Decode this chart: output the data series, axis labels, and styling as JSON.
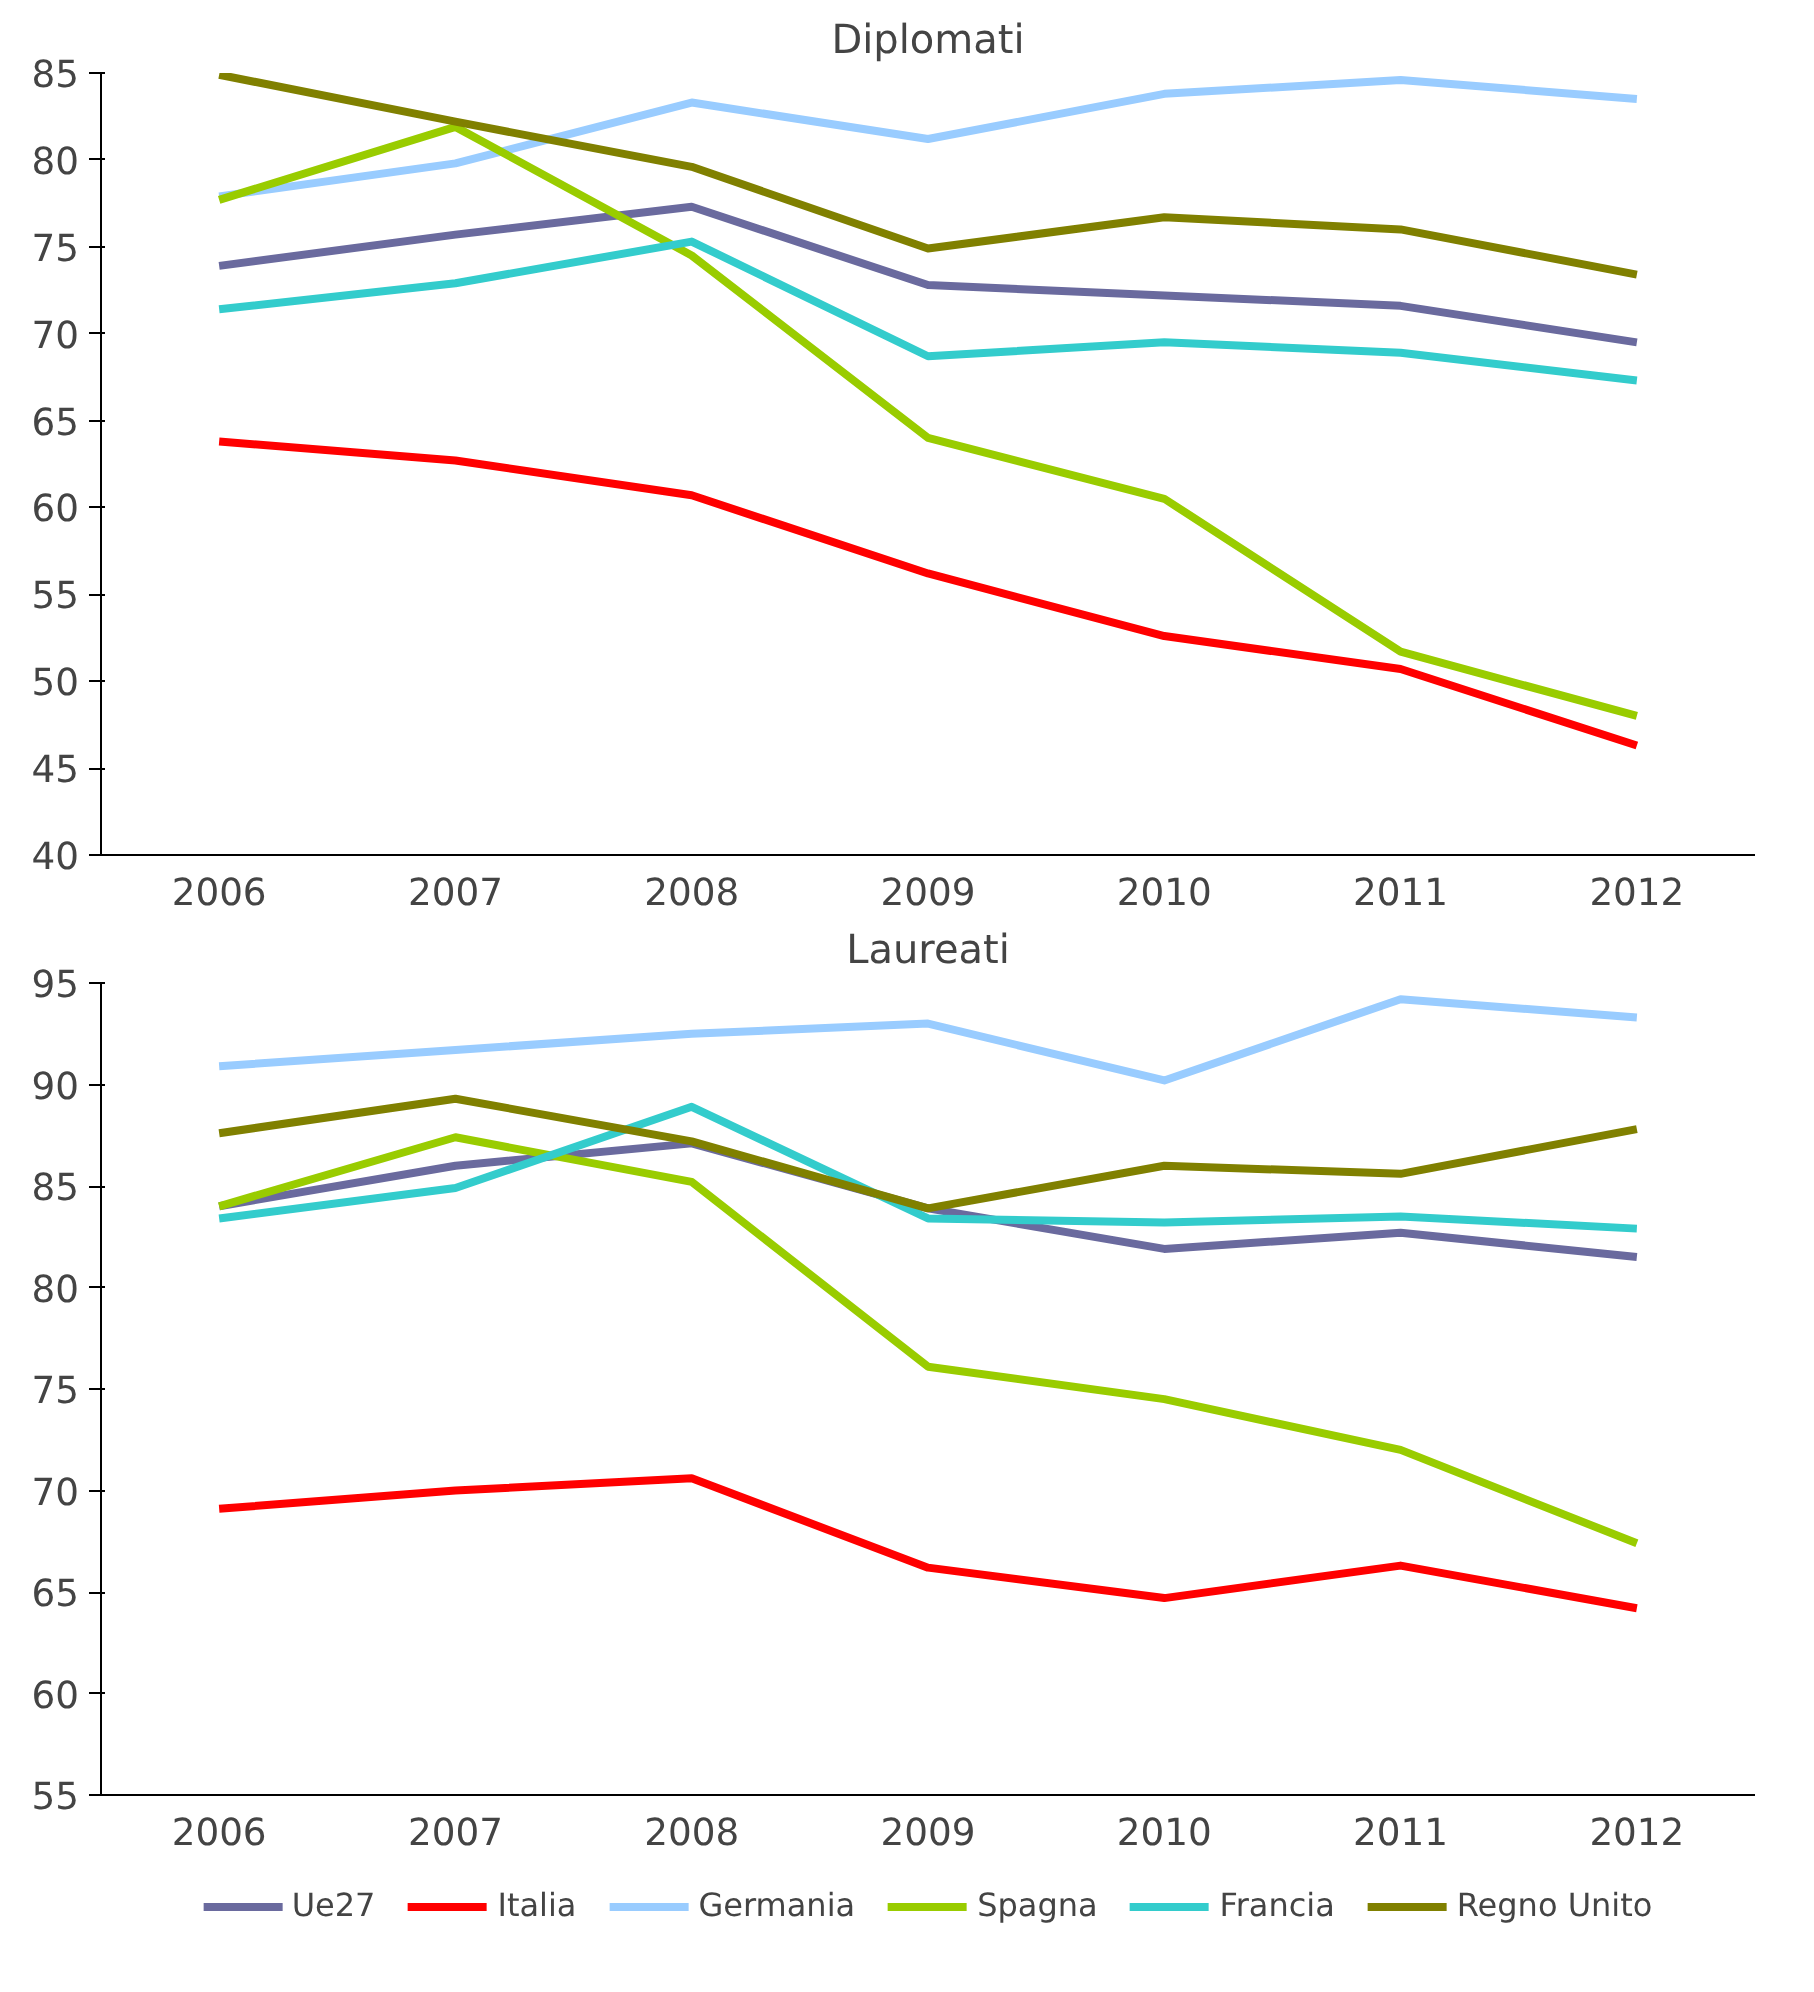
{
  "chart_data": [
    {
      "type": "line",
      "title": "Diplomati",
      "categories": [
        "2006",
        "2007",
        "2008",
        "2009",
        "2010",
        "2011",
        "2012"
      ],
      "ylim": [
        40,
        85
      ],
      "yticks": [
        40,
        45,
        50,
        55,
        60,
        65,
        70,
        75,
        80,
        85
      ],
      "grid": false,
      "legend": "bottom",
      "marker": "none",
      "line_style": "solid",
      "series": [
        {
          "name": "Ue27",
          "color": "#6a6a9e",
          "values": [
            73.9,
            75.7,
            77.3,
            72.8,
            72.2,
            71.6,
            69.5
          ]
        },
        {
          "name": "Italia",
          "color": "#ff0000",
          "values": [
            63.8,
            62.7,
            60.7,
            56.2,
            52.6,
            50.7,
            46.3
          ]
        },
        {
          "name": "Germania",
          "color": "#99ccff",
          "values": [
            77.9,
            79.8,
            83.3,
            81.2,
            83.8,
            84.6,
            83.5
          ]
        },
        {
          "name": "Spagna",
          "color": "#99cc00",
          "values": [
            77.7,
            81.9,
            74.5,
            64.0,
            60.5,
            51.7,
            48.0
          ]
        },
        {
          "name": "Francia",
          "color": "#33cccc",
          "values": [
            71.4,
            72.9,
            75.3,
            68.7,
            69.5,
            68.9,
            67.3
          ]
        },
        {
          "name": "Regno Unito",
          "color": "#808000",
          "values": [
            84.9,
            82.2,
            79.6,
            74.9,
            76.7,
            76.0,
            73.4
          ]
        }
      ]
    },
    {
      "type": "line",
      "title": "Laureati",
      "categories": [
        "2006",
        "2007",
        "2008",
        "2009",
        "2010",
        "2011",
        "2012"
      ],
      "ylim": [
        55,
        95
      ],
      "yticks": [
        55,
        60,
        65,
        70,
        75,
        80,
        85,
        90,
        95
      ],
      "grid": false,
      "legend": "bottom",
      "marker": "none",
      "line_style": "solid",
      "series": [
        {
          "name": "Ue27",
          "color": "#6a6a9e",
          "values": [
            84.0,
            86.0,
            87.1,
            83.9,
            81.9,
            82.7,
            81.5
          ]
        },
        {
          "name": "Italia",
          "color": "#ff0000",
          "values": [
            69.1,
            70.0,
            70.6,
            66.2,
            64.7,
            66.3,
            64.2
          ]
        },
        {
          "name": "Germania",
          "color": "#99ccff",
          "values": [
            90.9,
            91.7,
            92.5,
            93.0,
            90.2,
            94.2,
            93.3
          ]
        },
        {
          "name": "Spagna",
          "color": "#99cc00",
          "values": [
            84.0,
            87.4,
            85.2,
            76.1,
            74.5,
            72.0,
            67.4
          ]
        },
        {
          "name": "Francia",
          "color": "#33cccc",
          "values": [
            83.4,
            84.9,
            88.9,
            83.4,
            83.2,
            83.5,
            82.9
          ]
        },
        {
          "name": "Regno Unito",
          "color": "#808000",
          "values": [
            87.6,
            89.3,
            87.2,
            83.9,
            86.0,
            85.6,
            87.8
          ]
        }
      ]
    }
  ]
}
